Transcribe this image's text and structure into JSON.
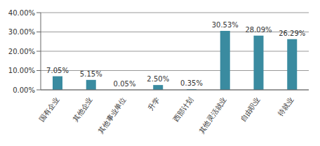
{
  "chart_data": {
    "type": "bar",
    "categories": [
      "国有企业",
      "其他企业",
      "其他事业单位",
      "升学",
      "西部计划",
      "其他灵活就业",
      "自由职业",
      "待就业"
    ],
    "values": [
      7.05,
      5.15,
      0.05,
      2.5,
      0.35,
      30.53,
      28.09,
      26.29
    ],
    "value_labels": [
      "7.05%",
      "5.15%",
      "0.05%",
      "2.50%",
      "0.35%",
      "30.53%",
      "28.09%",
      "26.29%"
    ],
    "data_labels": true,
    "color": "#3a8ba0",
    "ylim": [
      0,
      40
    ],
    "yticks": [
      {
        "value": 0,
        "label": "0.00%"
      },
      {
        "value": 10,
        "label": "10.00%"
      },
      {
        "value": 20,
        "label": "20.00%"
      },
      {
        "value": 30,
        "label": "30.00%"
      },
      {
        "value": 40,
        "label": "40.00%"
      }
    ],
    "grid": true
  }
}
